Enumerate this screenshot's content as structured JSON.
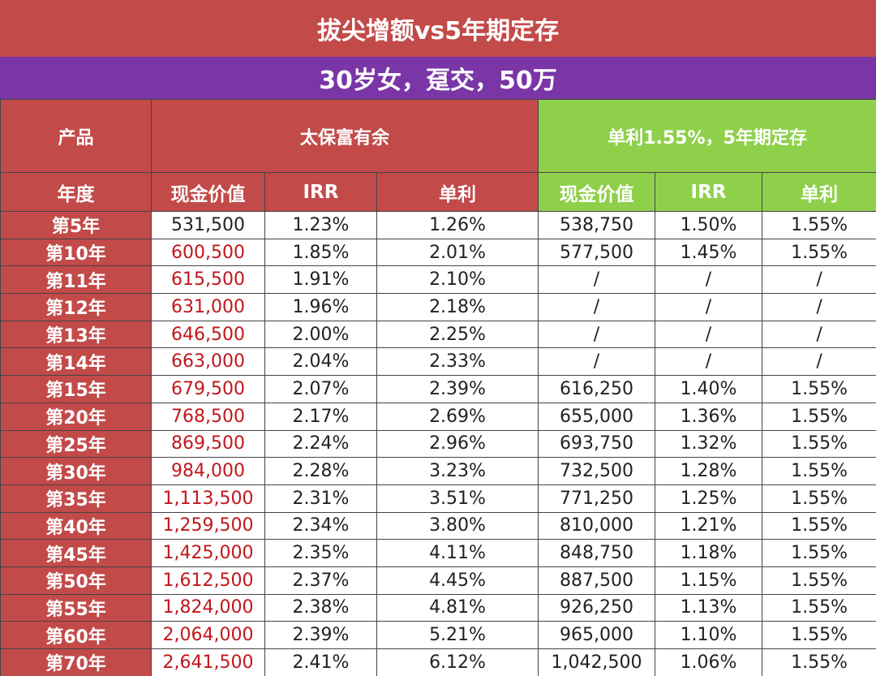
{
  "title": "拔尖增额vs5年期定存",
  "subtitle": "30岁女，趸交，50万",
  "header": {
    "product_label": "产品",
    "product_a": "太保富有余",
    "product_b": "单利1.55%，5年期定存",
    "year_label": "年度",
    "cash_value_a": "现金价值",
    "irr_a": "IRR",
    "simple_a": "单利",
    "cash_value_b": "现金价值",
    "irr_b": "IRR",
    "simple_b": "单利"
  },
  "rows": [
    [
      "第5年",
      "531,500",
      "1.23%",
      "1.26%",
      "538,750",
      "1.50%",
      "1.55%"
    ],
    [
      "第10年",
      "600,500",
      "1.85%",
      "2.01%",
      "577,500",
      "1.45%",
      "1.55%"
    ],
    [
      "第11年",
      "615,500",
      "1.91%",
      "2.10%",
      "/",
      "/",
      "/"
    ],
    [
      "第12年",
      "631,000",
      "1.96%",
      "2.18%",
      "/",
      "/",
      "/"
    ],
    [
      "第13年",
      "646,500",
      "2.00%",
      "2.25%",
      "/",
      "/",
      "/"
    ],
    [
      "第14年",
      "663,000",
      "2.04%",
      "2.33%",
      "/",
      "/",
      "/"
    ],
    [
      "第15年",
      "679,500",
      "2.07%",
      "2.39%",
      "616,250",
      "1.40%",
      "1.55%"
    ],
    [
      "第20年",
      "768,500",
      "2.17%",
      "2.69%",
      "655,000",
      "1.36%",
      "1.55%"
    ],
    [
      "第25年",
      "869,500",
      "2.24%",
      "2.96%",
      "693,750",
      "1.32%",
      "1.55%"
    ],
    [
      "第30年",
      "984,000",
      "2.28%",
      "3.23%",
      "732,500",
      "1.28%",
      "1.55%"
    ],
    [
      "第35年",
      "1,113,500",
      "2.31%",
      "3.51%",
      "771,250",
      "1.25%",
      "1.55%"
    ],
    [
      "第40年",
      "1,259,500",
      "2.34%",
      "3.80%",
      "810,000",
      "1.21%",
      "1.55%"
    ],
    [
      "第45年",
      "1,425,000",
      "2.35%",
      "4.11%",
      "848,750",
      "1.18%",
      "1.55%"
    ],
    [
      "第50年",
      "1,612,500",
      "2.37%",
      "4.45%",
      "887,500",
      "1.15%",
      "1.55%"
    ],
    [
      "第55年",
      "1,824,000",
      "2.38%",
      "4.81%",
      "926,250",
      "1.13%",
      "1.55%"
    ],
    [
      "第60年",
      "2,064,000",
      "2.39%",
      "5.21%",
      "965,000",
      "1.10%",
      "1.55%"
    ],
    [
      "第70年",
      "2,641,500",
      "2.41%",
      "6.12%",
      "1,042,500",
      "1.06%",
      "1.55%"
    ]
  ],
  "colors": {
    "header_red": "#c24a49",
    "subtitle_purple": "#7a35a6",
    "header_green": "#8fd04a",
    "value_red": "#c0171b"
  }
}
